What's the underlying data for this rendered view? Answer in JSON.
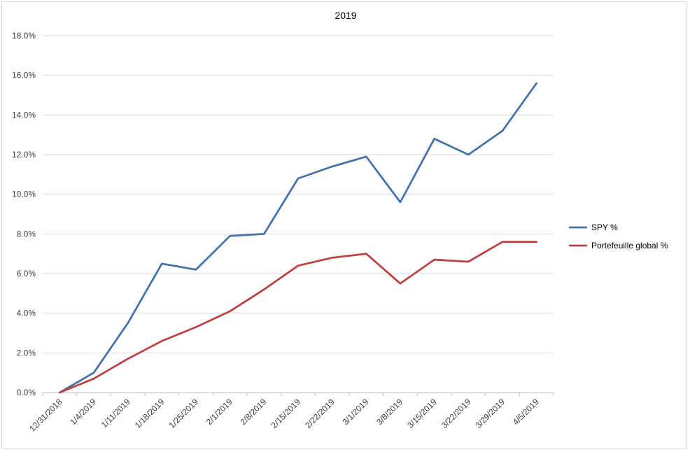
{
  "chart_data": {
    "type": "line",
    "title": "2019",
    "xlabel": "",
    "ylabel": "",
    "categories": [
      "12/31/2018",
      "1/4/2019",
      "1/11/2019",
      "1/18/2019",
      "1/25/2019",
      "2/1/2019",
      "2/8/2019",
      "2/15/2019",
      "2/22/2019",
      "3/1/2019",
      "3/8/2019",
      "3/15/2019",
      "3/22/2019",
      "3/29/2019",
      "4/5/2019"
    ],
    "ylim": [
      0,
      18
    ],
    "yticks": [
      "0.0%",
      "2.0%",
      "4.0%",
      "6.0%",
      "8.0%",
      "10.0%",
      "12.0%",
      "14.0%",
      "16.0%",
      "18.0%"
    ],
    "grid": true,
    "legend_position": "right",
    "series": [
      {
        "name": "SPY %",
        "color": "#4472a8",
        "values": [
          0.0,
          1.0,
          3.5,
          6.5,
          6.2,
          7.9,
          8.0,
          10.8,
          11.4,
          11.9,
          9.6,
          12.8,
          12.0,
          13.2,
          15.6
        ]
      },
      {
        "name": "Portefeuille global %",
        "color": "#be4040",
        "values": [
          0.0,
          0.7,
          1.7,
          2.6,
          3.3,
          4.1,
          5.2,
          6.4,
          6.8,
          7.0,
          5.5,
          6.7,
          6.6,
          7.6,
          7.6
        ]
      }
    ]
  }
}
